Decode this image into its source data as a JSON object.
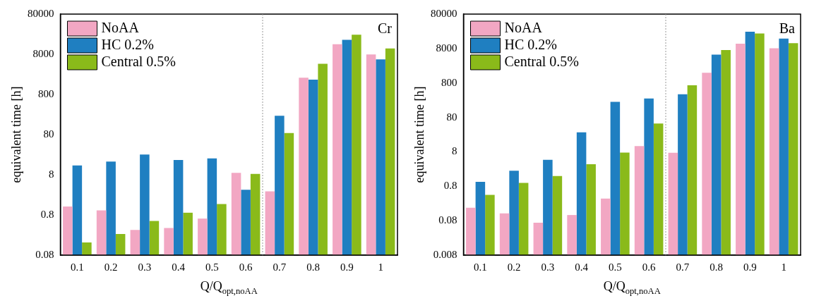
{
  "chart_data": [
    {
      "type": "bar",
      "xlabel": "Q/Q$_{opt,noAA}$",
      "ylabel": "equivalent time [h]",
      "annotations": [
        "Cr"
      ],
      "x": [
        0.1,
        0.2,
        0.3,
        0.4,
        0.5,
        0.6,
        0.7,
        0.8,
        0.9,
        1
      ],
      "xlim": [
        0.05,
        1.05
      ],
      "xticks": [
        0.1,
        0.2,
        0.3,
        0.4,
        0.5,
        0.6,
        0.7,
        0.8,
        0.9,
        1
      ],
      "log": true,
      "ylim": [
        0.08,
        80000
      ],
      "yticks": [
        0.08,
        0.8,
        8,
        80,
        800,
        8000,
        80000
      ],
      "grid": false,
      "legend": "top left",
      "ref_lines": [
        {
          "axis": "x",
          "value": 0.65,
          "color": "#999999",
          "line_style": "dotted"
        }
      ],
      "series": [
        {
          "name": "NoAA",
          "color": "#f2a7c3",
          "values": [
            1.3,
            1.04,
            0.34,
            0.38,
            0.65,
            8.9,
            3.1,
            2080,
            14200,
            7900
          ]
        },
        {
          "name": "HC 0.2%",
          "color": "#1f7fc1",
          "values": [
            13.6,
            17,
            25.5,
            18.6,
            20.4,
            3.4,
            235,
            1870,
            18400,
            5950
          ]
        },
        {
          "name": "Central 0.5%",
          "color": "#8aba1a",
          "values": [
            0.165,
            0.27,
            0.57,
            0.91,
            1.5,
            8.4,
            88,
            4630,
            24600,
            11200
          ]
        }
      ]
    },
    {
      "type": "bar",
      "xlabel": "Q/Q$_{opt,noAA}$",
      "ylabel": "equivalent time [h]",
      "annotations": [
        "Ba"
      ],
      "x": [
        0.1,
        0.2,
        0.3,
        0.4,
        0.5,
        0.6,
        0.7,
        0.8,
        0.9,
        1
      ],
      "xlim": [
        0.05,
        1.05
      ],
      "xticks": [
        0.1,
        0.2,
        0.3,
        0.4,
        0.5,
        0.6,
        0.7,
        0.8,
        0.9,
        1
      ],
      "log": true,
      "ylim": [
        0.008,
        80000
      ],
      "yticks": [
        0.008,
        0.08,
        0.8,
        8,
        80,
        800,
        8000,
        80000
      ],
      "grid": false,
      "legend": "top left",
      "ref_lines": [
        {
          "axis": "x",
          "value": 0.65,
          "color": "#999999",
          "line_style": "dotted"
        }
      ],
      "series": [
        {
          "name": "NoAA",
          "color": "#f2a7c3",
          "values": [
            0.19,
            0.13,
            0.07,
            0.117,
            0.35,
            11.7,
            7.5,
            1580,
            11100,
            8100
          ]
        },
        {
          "name": "HC 0.2%",
          "color": "#1f7fc1",
          "values": [
            1.08,
            2.27,
            4.7,
            29.6,
            226,
            282,
            375,
            5300,
            24500,
            15500
          ]
        },
        {
          "name": "Central 0.5%",
          "color": "#8aba1a",
          "values": [
            0.45,
            1.0,
            1.58,
            3.5,
            7.6,
            53,
            684,
            7200,
            21900,
            11500
          ]
        }
      ]
    }
  ]
}
